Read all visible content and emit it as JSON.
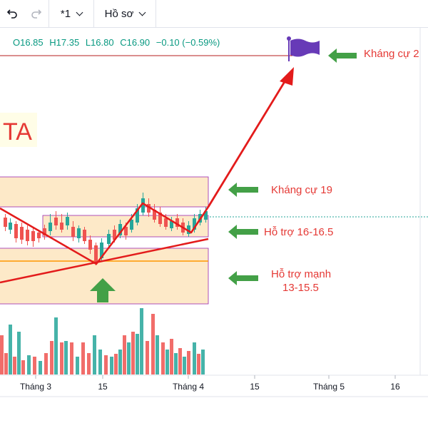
{
  "toolbar": {
    "undo_icon": "undo-icon",
    "redo_icon": "redo-icon",
    "layout_label": "*1",
    "profile_label": "Hồ sơ"
  },
  "ohlc": {
    "open": "O16.85",
    "high": "H17.35",
    "low": "L16.80",
    "close": "C16.90",
    "change": "−0.10 (−0.59%)"
  },
  "annotations": {
    "resistance_top": "Kháng cự 2",
    "resistance_19": "Kháng cự 19",
    "support_16": "Hỗ trợ 16-16.5",
    "support_strong_line1": "Hỗ trợ mạnh",
    "support_strong_line2": "13-15.5",
    "partial_title": "TA"
  },
  "time_axis": {
    "labels": [
      "Tháng 3",
      "15",
      "Tháng 4",
      "15",
      "Tháng 5",
      "16"
    ]
  },
  "colors": {
    "up": "#26a69a",
    "down": "#ef5350",
    "arrow_red": "#e31b1b",
    "arrow_green": "#43a047",
    "zone_fill": "#fde9c8",
    "zone_border": "#9c27b0",
    "flag": "#673ab7",
    "text_red": "#e53935",
    "ohlc": "#089981"
  }
}
